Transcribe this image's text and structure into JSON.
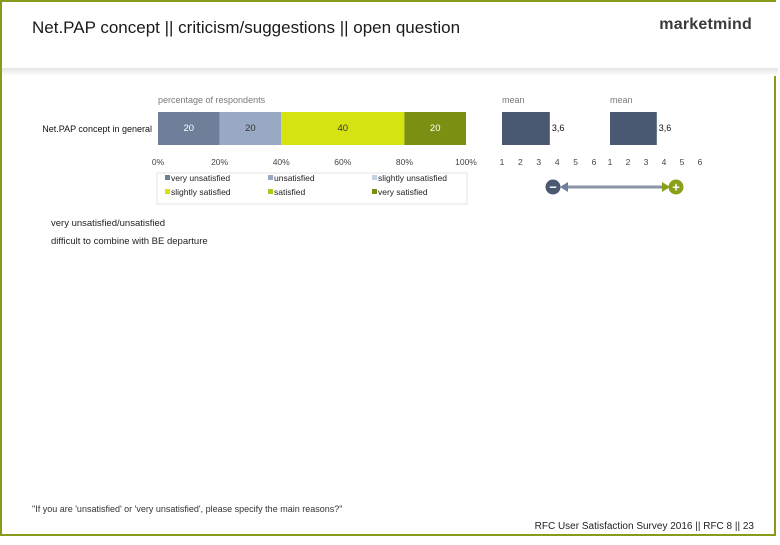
{
  "header": {
    "title": "Net.PAP concept || criticism/suggestions || open question",
    "logo": "marketmind"
  },
  "colors": {
    "very_unsatisfied": "#6f7f99",
    "unsatisfied": "#9aa9c3",
    "slightly_unsatisfied": "#c3d0e5",
    "slightly_satisfied": "#d5e313",
    "satisfied": "#b4c51e",
    "very_satisfied": "#7b8f12",
    "mean_bar": "#4b5872",
    "frame": "#8a9a1a"
  },
  "chart_data": [
    {
      "type": "bar",
      "orientation": "horizontal-stacked",
      "title": "percentage of respondents",
      "categories": [
        "Net.PAP concept in general"
      ],
      "series": [
        {
          "name": "very unsatisfied",
          "values": [
            20
          ]
        },
        {
          "name": "unsatisfied",
          "values": [
            20
          ]
        },
        {
          "name": "slightly unsatisfied",
          "values": [
            0
          ]
        },
        {
          "name": "slightly satisfied",
          "values": [
            40
          ]
        },
        {
          "name": "satisfied",
          "values": [
            0
          ]
        },
        {
          "name": "very satisfied",
          "values": [
            20
          ]
        }
      ],
      "xlim": [
        0,
        100
      ],
      "xticks": [
        "0%",
        "20%",
        "40%",
        "60%",
        "80%",
        "100%"
      ],
      "legend_position": "bottom"
    },
    {
      "type": "bar",
      "orientation": "horizontal",
      "title": "mean",
      "values": [
        3.6
      ],
      "value_label": "3,6",
      "xlim": [
        1,
        6
      ],
      "xticks": [
        "1",
        "2",
        "3",
        "4",
        "5",
        "6"
      ]
    },
    {
      "type": "bar",
      "orientation": "horizontal",
      "title": "mean",
      "values": [
        3.6
      ],
      "value_label": "3,6",
      "xlim": [
        1,
        6
      ],
      "xticks": [
        "1",
        "2",
        "3",
        "4",
        "5",
        "6"
      ]
    }
  ],
  "scale": {
    "minus": "−",
    "plus": "+"
  },
  "responses": {
    "lines": [
      "very unsatisfied/unsatisfied",
      "difficult to combine with BE departure"
    ]
  },
  "footnote": "\"If you are 'unsatisfied' or 'very unsatisfied', please specify the main reasons?\"",
  "footer": "RFC User Satisfaction Survey 2016 || RFC 8 || 23"
}
